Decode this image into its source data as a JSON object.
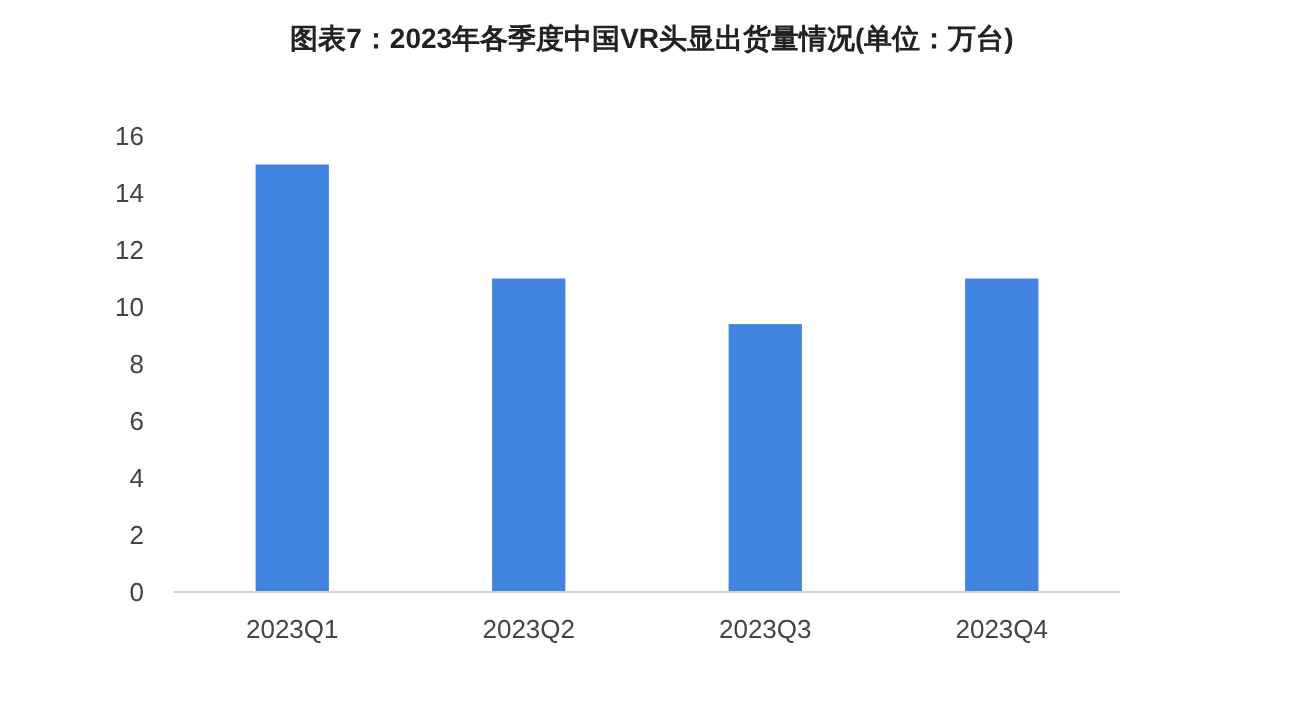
{
  "chart_data": {
    "type": "bar",
    "title": "图表7：2023年各季度中国VR头显出货量情况(单位：万台)",
    "categories": [
      "2023Q1",
      "2023Q2",
      "2023Q3",
      "2023Q4"
    ],
    "values": [
      15,
      11,
      9.4,
      11
    ],
    "color": "#4285e0",
    "ylim": [
      0,
      16
    ],
    "yticks": [
      0,
      2,
      4,
      6,
      8,
      10,
      12,
      14,
      16
    ]
  }
}
